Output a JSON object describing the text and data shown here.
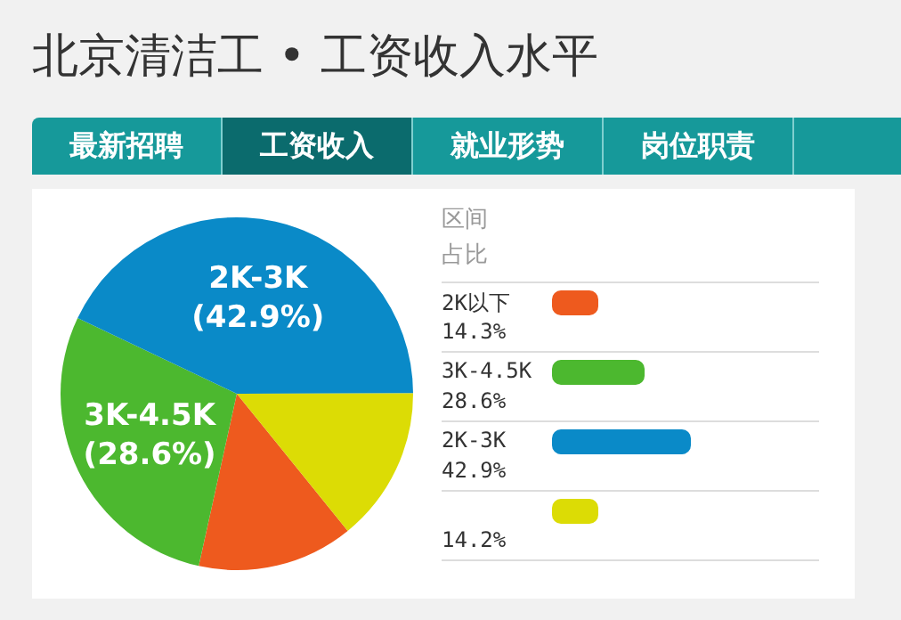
{
  "chart_data": {
    "type": "pie",
    "title": "北京清洁工 • 工资收入水平",
    "annotations": [
      "最新招聘",
      "工资收入",
      "就业形势",
      "岗位职责",
      "14.3%",
      "28.6%",
      "42.9%",
      "14.2%"
    ],
    "legend_title": "区间占比",
    "legend": "right",
    "categories": [
      "2K以下",
      "3K-4.5K",
      "2K-3K",
      null
    ],
    "values": [
      14.3,
      28.6,
      42.9,
      14.2
    ],
    "colors": [
      "#ee5a1e",
      "#4cb82f",
      "#0a8ac8",
      "#dcdc05"
    ],
    "value_labels": [
      null,
      "(28.6%)",
      "(42.9%)",
      null
    ]
  }
}
